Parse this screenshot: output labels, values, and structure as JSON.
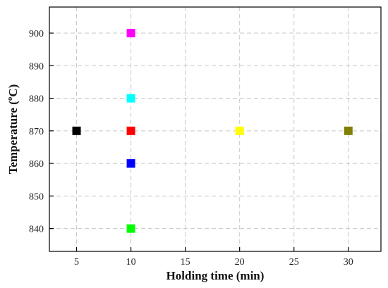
{
  "chart_data": {
    "type": "scatter",
    "xlabel": "Holding time (min)",
    "ylabel_parts": [
      "Temperature (",
      "o",
      "C)"
    ],
    "xlim": [
      2.5,
      33
    ],
    "ylim": [
      833,
      908
    ],
    "x_ticks": [
      5,
      10,
      15,
      20,
      25,
      30
    ],
    "y_ticks": [
      840,
      850,
      860,
      870,
      880,
      890,
      900
    ],
    "grid": true,
    "points": [
      {
        "x": 5,
        "y": 870,
        "color": "#000000"
      },
      {
        "x": 10,
        "y": 900,
        "color": "#ff00ff"
      },
      {
        "x": 10,
        "y": 880,
        "color": "#00ffff"
      },
      {
        "x": 10,
        "y": 870,
        "color": "#ff0000"
      },
      {
        "x": 10,
        "y": 860,
        "color": "#0000ff"
      },
      {
        "x": 10,
        "y": 840,
        "color": "#00ff00"
      },
      {
        "x": 20,
        "y": 870,
        "color": "#ffff00"
      },
      {
        "x": 30,
        "y": 870,
        "color": "#808000"
      }
    ]
  }
}
